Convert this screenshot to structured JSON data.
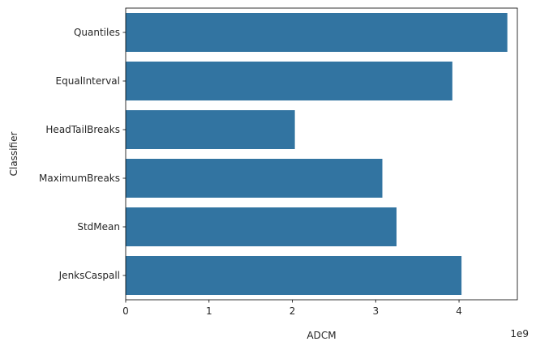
{
  "chart_data": {
    "type": "bar",
    "orientation": "horizontal",
    "title": "",
    "xlabel": "ADCM",
    "ylabel": "Classifier",
    "x_scale_multiplier_label": "1e9",
    "x_scale_multiplier": 1000000000,
    "xlim": [
      0,
      4700000000
    ],
    "x_ticks": [
      0,
      1000000000,
      2000000000,
      3000000000,
      4000000000
    ],
    "x_tick_labels": [
      "0",
      "1",
      "2",
      "3",
      "4"
    ],
    "categories": [
      "Quantiles",
      "EqualInterval",
      "HeadTailBreaks",
      "MaximumBreaks",
      "StdMean",
      "JenksCaspall"
    ],
    "values": [
      4580000000,
      3920000000,
      2030000000,
      3080000000,
      3250000000,
      4030000000
    ],
    "bar_color": "#3274a1",
    "grid": false,
    "legend": "none"
  }
}
